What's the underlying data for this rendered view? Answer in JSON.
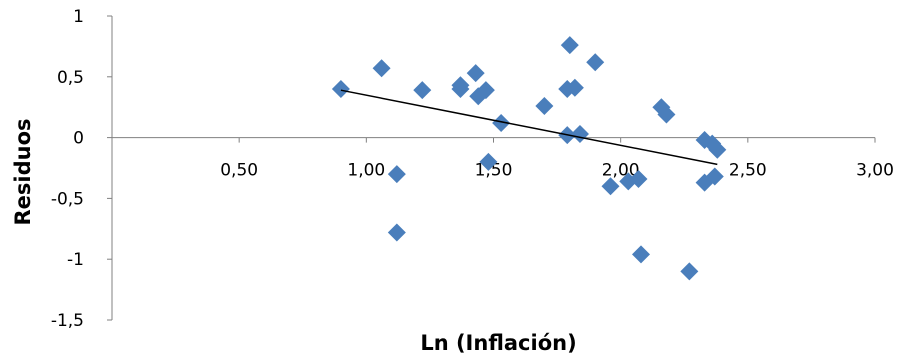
{
  "chart_data": {
    "type": "scatter",
    "title": "",
    "xlabel": "Ln (Inflación)",
    "ylabel": "Residuos",
    "xlim": [
      0,
      3
    ],
    "ylim": [
      -1.5,
      1
    ],
    "x_ticks": [
      0.5,
      1.0,
      1.5,
      2.0,
      2.5,
      3.0
    ],
    "x_tick_labels": [
      "0,50",
      "1,00",
      "1,50",
      "2,00",
      "2,50",
      "3,00"
    ],
    "y_ticks": [
      1,
      0.5,
      0,
      -0.5,
      -1,
      -1.5
    ],
    "y_tick_labels": [
      "1",
      "0,5",
      "0",
      "-0,5",
      "-1",
      "-1,5"
    ],
    "grid": false,
    "legend": "none",
    "marker": "diamond",
    "marker_color": "#4a7ebb",
    "trendline_color": "#000000",
    "trendline": {
      "x": [
        0.9,
        2.38
      ],
      "y": [
        0.39,
        -0.22
      ]
    },
    "series": [
      {
        "points": [
          [
            0.9,
            0.4
          ],
          [
            1.06,
            0.57
          ],
          [
            1.12,
            -0.3
          ],
          [
            1.12,
            -0.78
          ],
          [
            1.22,
            0.39
          ],
          [
            1.37,
            0.4
          ],
          [
            1.37,
            0.43
          ],
          [
            1.43,
            0.53
          ],
          [
            1.44,
            0.34
          ],
          [
            1.47,
            0.39
          ],
          [
            1.48,
            -0.2
          ],
          [
            1.53,
            0.12
          ],
          [
            1.7,
            0.26
          ],
          [
            1.79,
            0.02
          ],
          [
            1.79,
            0.4
          ],
          [
            1.8,
            0.76
          ],
          [
            1.82,
            0.41
          ],
          [
            1.84,
            0.03
          ],
          [
            1.9,
            0.62
          ],
          [
            1.96,
            -0.4
          ],
          [
            2.03,
            -0.36
          ],
          [
            2.07,
            -0.34
          ],
          [
            2.08,
            -0.96
          ],
          [
            2.16,
            0.25
          ],
          [
            2.18,
            0.19
          ],
          [
            2.27,
            -1.1
          ],
          [
            2.33,
            -0.02
          ],
          [
            2.33,
            -0.37
          ],
          [
            2.36,
            -0.05
          ],
          [
            2.37,
            -0.32
          ],
          [
            2.38,
            -0.1
          ]
        ]
      }
    ]
  }
}
